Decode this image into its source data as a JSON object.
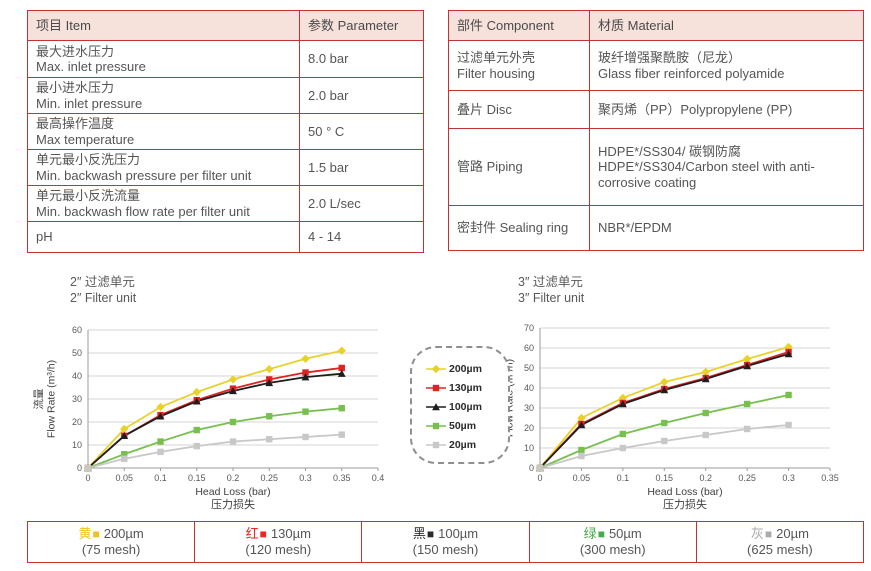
{
  "page": {
    "border_red": "#bf3533",
    "header_pink": "#f6e1db"
  },
  "spec_table": {
    "header": {
      "item": "项目 Item",
      "parameter": "参数 Parameter"
    },
    "rows": [
      {
        "zh": "最大进水压力",
        "en": "Max. inlet pressure",
        "value": "8.0 bar"
      },
      {
        "zh": "最小进水压力",
        "en": "Min. inlet pressure",
        "value": "2.0 bar"
      },
      {
        "zh": "最高操作温度",
        "en": "Max temperature",
        "value": "50 ° C"
      },
      {
        "zh": "单元最小反洗压力",
        "en": "Min. backwash pressure per filter unit",
        "value": "1.5 bar"
      },
      {
        "zh": "单元最小反洗流量",
        "en": "Min. backwash flow rate per filter unit",
        "value": "2.0 L/sec"
      },
      {
        "zh": "pH",
        "en": "",
        "value": "4 - 14"
      }
    ]
  },
  "material_table": {
    "header": {
      "component": "部件 Component",
      "material": "材质 Material"
    },
    "rows": [
      {
        "component_zh": "过滤单元外壳",
        "component_en": "Filter housing",
        "material_zh": "玻纤增强聚酰胺（尼龙）",
        "material_en": "Glass fiber reinforced polyamide"
      },
      {
        "component_zh": "叠片 Disc",
        "component_en": "",
        "material_zh": "聚丙烯（PP）Polypropylene (PP)",
        "material_en": ""
      },
      {
        "component_zh": "管路 Piping",
        "component_en": "",
        "material_zh": "HDPE*/SS304/ 碳钢防腐",
        "material_en": "HDPE*/SS304/Carbon steel with anti-corrosive coating"
      },
      {
        "component_zh": "密封件 Sealing ring",
        "component_en": "",
        "material_zh": "NBR*/EPDM",
        "material_en": ""
      }
    ]
  },
  "chart_data": [
    {
      "type": "line",
      "title_zh": "2″ 过滤单元",
      "title_en": "2″ Filter unit",
      "xlabel": "Head Loss (bar)",
      "xlabel_zh": "压力损失",
      "ylabel_zh": "流量",
      "ylabel_en": "Flow Rate (m³/h)",
      "xlim": [
        0,
        0.4
      ],
      "ylim": [
        0,
        60
      ],
      "xtick_step": 0.05,
      "ytick_step": 10,
      "grid": "horizontal",
      "x": [
        0,
        0.05,
        0.1,
        0.15,
        0.2,
        0.25,
        0.3,
        0.35
      ],
      "series": [
        {
          "name": "200µm",
          "color": "#e8d22a",
          "marker": "diamond",
          "values": [
            0,
            17,
            26.5,
            33,
            38.5,
            43,
            47.5,
            51
          ]
        },
        {
          "name": "130µm",
          "color": "#dd2423",
          "marker": "square",
          "values": [
            0,
            14,
            23,
            29.5,
            34.5,
            38.5,
            41.5,
            43.5
          ]
        },
        {
          "name": "100µm",
          "color": "#1e1e1e",
          "marker": "triangle",
          "values": [
            0,
            14,
            22.5,
            29,
            33.5,
            37,
            39.5,
            41
          ]
        },
        {
          "name": "50µm",
          "color": "#77c04f",
          "marker": "square",
          "values": [
            0,
            6,
            11.5,
            16.5,
            20,
            22.5,
            24.5,
            26
          ]
        },
        {
          "name": "20µm",
          "color": "#c8c8c8",
          "marker": "square",
          "values": [
            0,
            4,
            7,
            9.5,
            11.5,
            12.5,
            13.5,
            14.5
          ]
        }
      ]
    },
    {
      "type": "line",
      "title_zh": "3″ 过滤单元",
      "title_en": "3″ Filter unit",
      "xlabel": "Head Loss (bar)",
      "xlabel_zh": "压力损失",
      "ylabel_zh": "流量",
      "ylabel_en": "Flow Rate (m³/h)",
      "xlim": [
        0,
        0.35
      ],
      "ylim": [
        0,
        70
      ],
      "xtick_step": 0.05,
      "ytick_step": 10,
      "grid": "horizontal",
      "x": [
        0,
        0.05,
        0.1,
        0.15,
        0.2,
        0.25,
        0.3
      ],
      "series": [
        {
          "name": "200µm",
          "color": "#e8d22a",
          "marker": "diamond",
          "values": [
            0,
            25,
            35,
            43,
            48,
            54.5,
            60.5
          ]
        },
        {
          "name": "130µm",
          "color": "#dd2423",
          "marker": "square",
          "values": [
            0,
            22,
            32.5,
            39.5,
            45,
            51.5,
            58
          ]
        },
        {
          "name": "100µm",
          "color": "#1e1e1e",
          "marker": "triangle",
          "values": [
            0,
            21.5,
            32,
            39,
            44.5,
            51,
            57
          ]
        },
        {
          "name": "50µm",
          "color": "#77c04f",
          "marker": "square",
          "values": [
            0,
            9,
            17,
            22.5,
            27.5,
            32,
            36.5
          ]
        },
        {
          "name": "20µm",
          "color": "#c8c8c8",
          "marker": "square",
          "values": [
            0,
            6,
            10,
            13.5,
            16.5,
            19.5,
            21.5
          ]
        }
      ]
    }
  ],
  "chart_legend": {
    "entries": [
      {
        "label": "200µm",
        "color": "#e8d22a",
        "marker": "diamond"
      },
      {
        "label": "130µm",
        "color": "#dd2423",
        "marker": "square"
      },
      {
        "label": "100µm",
        "color": "#1e1e1e",
        "marker": "triangle"
      },
      {
        "label": "50µm",
        "color": "#77c04f",
        "marker": "square"
      },
      {
        "label": "20µm",
        "color": "#c8c8c8",
        "marker": "square"
      }
    ]
  },
  "mesh_table": {
    "square_char": "■",
    "cells": [
      {
        "color_name": "黄",
        "color": "#f0c11a",
        "size": "200µm",
        "mesh": "(75 mesh)"
      },
      {
        "color_name": "红",
        "color": "#f02421",
        "size": "130µm",
        "mesh": "(120 mesh)"
      },
      {
        "color_name": "黑",
        "color": "#2b2b2b",
        "size": "100µm",
        "mesh": "(150 mesh)"
      },
      {
        "color_name": "绿",
        "color": "#47ab4c",
        "size": "50µm",
        "mesh": "(300 mesh)"
      },
      {
        "color_name": "灰",
        "color": "#ababab",
        "size": "20µm",
        "mesh": "(625 mesh)"
      }
    ]
  }
}
